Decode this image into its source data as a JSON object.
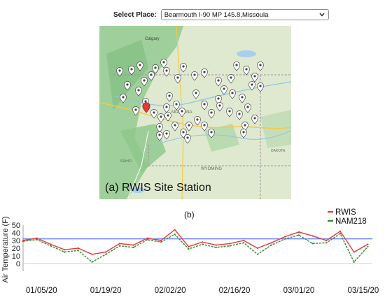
{
  "selector": {
    "label": "Select Place:",
    "selected": "Bearmouth I-90 MP 145.8,Missoula",
    "chevron_icon": "chevron-down-icon"
  },
  "map": {
    "caption": "(a) RWIS Site Station",
    "place_labels": [
      "Calgary",
      "MONTANA",
      "WYOMING",
      "IDAHO",
      "DAKOTA"
    ],
    "marker_icon": "map-pin-icon",
    "selected_marker_color": "#e53935",
    "marker_color": "#ffffff"
  },
  "panel_b_label": "(b)",
  "chart_data": {
    "type": "line",
    "ylabel": "Air Temperature (F)",
    "xlabel": "",
    "ylim": [
      -10,
      50
    ],
    "yticks": [
      0,
      10,
      20,
      30,
      40,
      50
    ],
    "x_ticks": [
      "01/05/20",
      "01/19/20",
      "02/02/20",
      "02/16/20",
      "03/01/20",
      "03/15/20"
    ],
    "x_range": [
      "01/01/20",
      "03/17/20"
    ],
    "reference_line": {
      "value": 32,
      "color": "#3355ff"
    },
    "legend_position": "top-right",
    "series": [
      {
        "name": "RWIS",
        "color": "#e53935",
        "dates": [
          "01/01/20",
          "01/04/20",
          "01/07/20",
          "01/10/20",
          "01/13/20",
          "01/16/20",
          "01/19/20",
          "01/22/20",
          "01/25/20",
          "01/28/20",
          "01/31/20",
          "02/03/20",
          "02/06/20",
          "02/09/20",
          "02/12/20",
          "02/15/20",
          "02/18/20",
          "02/21/20",
          "02/24/20",
          "02/27/20",
          "03/01/20",
          "03/04/20",
          "03/07/20",
          "03/10/20",
          "03/13/20",
          "03/16/20"
        ],
        "values": [
          30,
          33,
          25,
          18,
          20,
          12,
          15,
          26,
          24,
          33,
          30,
          44,
          22,
          28,
          24,
          26,
          30,
          20,
          27,
          35,
          41,
          36,
          30,
          42,
          15,
          25
        ]
      },
      {
        "name": "NAM218",
        "color": "#2e8b2e",
        "dates": [
          "01/01/20",
          "01/04/20",
          "01/07/20",
          "01/10/20",
          "01/13/20",
          "01/16/20",
          "01/19/20",
          "01/22/20",
          "01/25/20",
          "01/28/20",
          "01/31/20",
          "02/03/20",
          "02/06/20",
          "02/09/20",
          "02/12/20",
          "02/15/20",
          "02/18/20",
          "02/21/20",
          "02/24/20",
          "02/27/20",
          "03/01/20",
          "03/04/20",
          "03/07/20",
          "03/10/20",
          "03/13/20",
          "03/16/20"
        ],
        "values": [
          29,
          31,
          23,
          15,
          17,
          2,
          12,
          23,
          21,
          31,
          28,
          38,
          19,
          25,
          21,
          23,
          27,
          12,
          24,
          32,
          37,
          26,
          27,
          39,
          2,
          22
        ]
      }
    ]
  }
}
